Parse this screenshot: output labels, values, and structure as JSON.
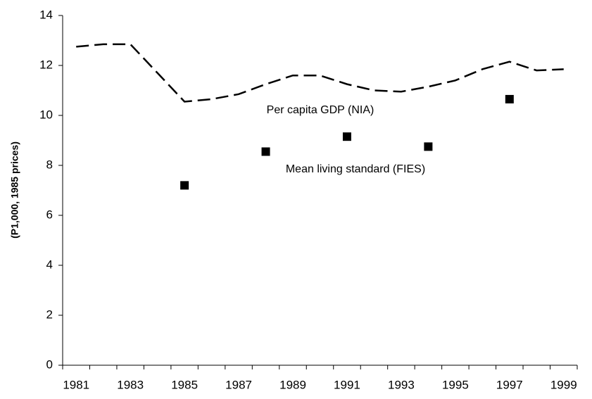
{
  "chart_data": {
    "type": "line",
    "y_label": "(P1,000, 1985 prices)",
    "categories": [
      "1981",
      null,
      "1983",
      null,
      "1985",
      null,
      "1987",
      null,
      "1989",
      null,
      "1991",
      null,
      "1993",
      null,
      "1995",
      null,
      "1997",
      null,
      "1999"
    ],
    "series": [
      {
        "name": "Per capita GDP (NIA)",
        "color": "#000000",
        "dash": true,
        "values": [
          12.75,
          12.85,
          12.85,
          11.7,
          10.55,
          10.65,
          10.85,
          11.25,
          11.6,
          11.6,
          11.25,
          11.0,
          10.95,
          11.15,
          11.4,
          11.85,
          12.15,
          11.8,
          11.85
        ]
      },
      {
        "name": "Mean living standard (FIES)",
        "color": "#000000",
        "dash": false,
        "markers": true,
        "values": [
          null,
          null,
          null,
          null,
          7.2,
          null,
          null,
          8.55,
          null,
          null,
          9.15,
          null,
          null,
          8.75,
          null,
          null,
          10.65,
          null,
          null
        ]
      }
    ],
    "ylim": [
      0,
      14
    ],
    "yticks": [
      0,
      2,
      4,
      6,
      8,
      10,
      12,
      14
    ],
    "grid": false
  }
}
